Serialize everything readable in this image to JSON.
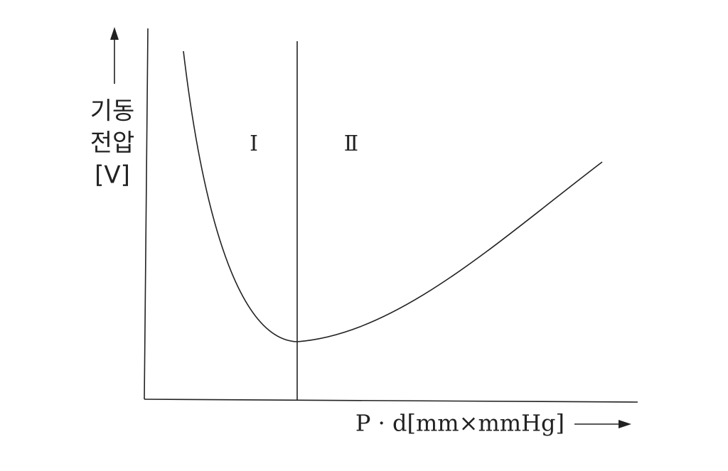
{
  "y_axis_label": [
    "기동",
    "전압",
    "[V]"
  ],
  "regions": [
    "Ⅰ",
    "Ⅱ"
  ],
  "x_axis_label": "P · d[mm×mmHg]"
}
